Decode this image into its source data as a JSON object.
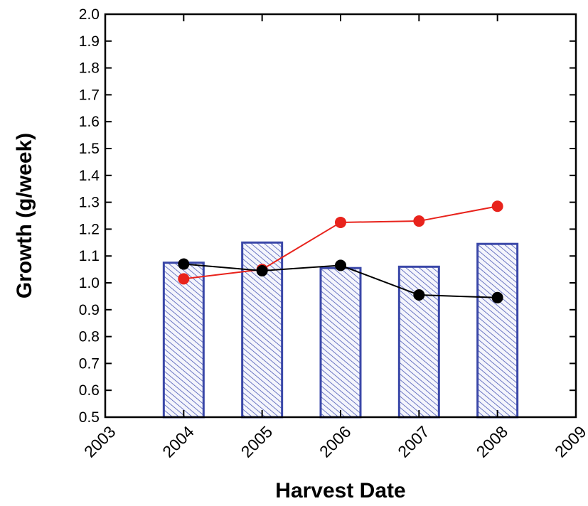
{
  "chart_data": {
    "type": "bar",
    "title": "",
    "xlabel": "Harvest Date",
    "ylabel": "Growth (g/week)",
    "xlim": [
      2003,
      2009
    ],
    "ylim": [
      0.5,
      2.0
    ],
    "x_ticks": [
      "2003",
      "2004",
      "2005",
      "2006",
      "2007",
      "2008",
      "2009"
    ],
    "y_ticks": [
      "0.5",
      "0.6",
      "0.7",
      "0.8",
      "0.9",
      "1.0",
      "1.1",
      "1.2",
      "1.3",
      "1.4",
      "1.5",
      "1.6",
      "1.7",
      "1.8",
      "1.9",
      "2.0"
    ],
    "grid": false,
    "legend": "none",
    "bars": {
      "x": [
        2004,
        2005,
        2006,
        2007,
        2008
      ],
      "values": [
        1.075,
        1.15,
        1.055,
        1.06,
        1.145
      ],
      "edge_color": "#3a47a8",
      "fill": "hatched"
    },
    "lines": [
      {
        "x": [
          2004,
          2005,
          2006,
          2007,
          2008
        ],
        "values": [
          1.015,
          1.05,
          1.225,
          1.23,
          1.285
        ],
        "color": "#e8231c"
      },
      {
        "x": [
          2004,
          2005,
          2006,
          2007,
          2008
        ],
        "values": [
          1.07,
          1.045,
          1.065,
          0.955,
          0.945
        ],
        "color": "#000000"
      }
    ]
  }
}
